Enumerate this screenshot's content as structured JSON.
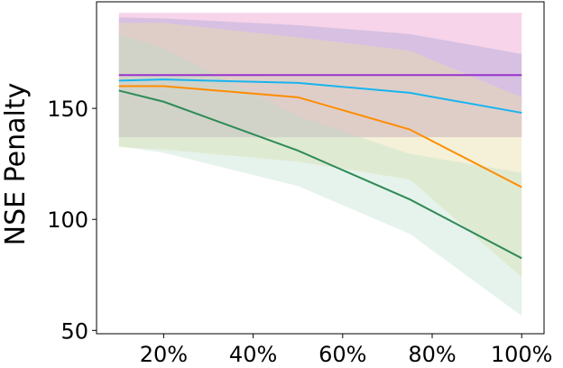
{
  "chart_data": {
    "type": "line",
    "title": "",
    "xlabel": "",
    "ylabel": "NSE Penalty",
    "xlim": [
      0.05,
      1.05
    ],
    "ylim": [
      48.5,
      198
    ],
    "x_ticks": [
      {
        "value": 0.2,
        "label": "20%"
      },
      {
        "value": 0.4,
        "label": "40%"
      },
      {
        "value": 0.6,
        "label": "60%"
      },
      {
        "value": 0.8,
        "label": "80%"
      },
      {
        "value": 1.0,
        "label": "100%"
      }
    ],
    "y_ticks": [
      {
        "value": 50,
        "label": "50"
      },
      {
        "value": 100,
        "label": "100"
      },
      {
        "value": 150,
        "label": "150"
      }
    ],
    "grid": false,
    "legend": "none",
    "series": [
      {
        "color": "#d62790",
        "fill_opacity": 0.2,
        "x": [
          0.1,
          1.0
        ],
        "y": [
          165,
          165
        ],
        "lower": [
          137,
          137
        ],
        "upper": [
          193,
          193
        ]
      },
      {
        "color": "#9a9ad8",
        "fill_opacity": 0.35,
        "x": [
          0.1,
          0.2,
          0.5,
          0.75,
          1.0
        ],
        "y": [
          162.5,
          163,
          161.5,
          157,
          148
        ],
        "lower": [
          137,
          137,
          137,
          137,
          137
        ],
        "upper": [
          191,
          190.5,
          187.5,
          183.5,
          174.5
        ]
      },
      {
        "color": "#e8e0a8",
        "fill_opacity": 0.45,
        "x": [
          0.1,
          0.2,
          0.5,
          0.75,
          1.0
        ],
        "y": [
          160,
          160,
          155,
          140.5,
          114.5
        ],
        "lower": [
          132.5,
          131.5,
          126,
          118,
          74
        ],
        "upper": [
          188.5,
          188.5,
          182,
          176,
          155
        ]
      },
      {
        "color": "#b8dcc8",
        "fill_opacity": 0.35,
        "x": [
          0.1,
          0.2,
          0.5,
          0.75,
          1.0
        ],
        "y": [
          158,
          153,
          131,
          109,
          82.5
        ],
        "lower": [
          133,
          130,
          115,
          93.5,
          56.5
        ],
        "upper": [
          183.5,
          177,
          146.5,
          129.5,
          121
        ]
      }
    ],
    "lines": [
      {
        "color": "#9932cc",
        "x": [
          0.1,
          1.0
        ],
        "y": [
          165,
          165
        ]
      },
      {
        "color": "#17b4f0",
        "x": [
          0.1,
          0.2,
          0.5,
          0.75,
          1.0
        ],
        "y": [
          162.5,
          163,
          161.5,
          157,
          148
        ]
      },
      {
        "color": "#ff8c00",
        "x": [
          0.1,
          0.2,
          0.5,
          0.75,
          1.0
        ],
        "y": [
          160,
          160,
          155,
          140.5,
          114.5
        ]
      },
      {
        "color": "#2e8b57",
        "x": [
          0.1,
          0.2,
          0.5,
          0.75,
          1.0
        ],
        "y": [
          158,
          153,
          131,
          109,
          82.5
        ]
      }
    ]
  }
}
